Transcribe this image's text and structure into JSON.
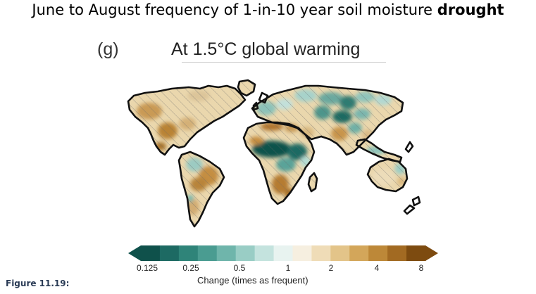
{
  "header": {
    "title_prefix": "June to August frequency of 1-in-10 year soil moisture ",
    "title_emphasis": "drought"
  },
  "panel": {
    "label": "(g)",
    "title": "At 1.5°C global warming"
  },
  "colorbar": {
    "ticks": [
      "0.125",
      "0.25",
      "0.5",
      "1",
      "2",
      "4",
      "8"
    ],
    "label": "Change (times as frequent)",
    "colors": [
      "#0f514b",
      "#1d6a63",
      "#2f8479",
      "#4a9c91",
      "#6fb5ab",
      "#99cdc5",
      "#c4e3de",
      "#e8f3f0",
      "#f6efe0",
      "#efdcb7",
      "#e3c489",
      "#d3a65a",
      "#bd8838",
      "#a26a22",
      "#7d4b10"
    ]
  },
  "figure": {
    "label": "Figure 11.19:"
  }
}
